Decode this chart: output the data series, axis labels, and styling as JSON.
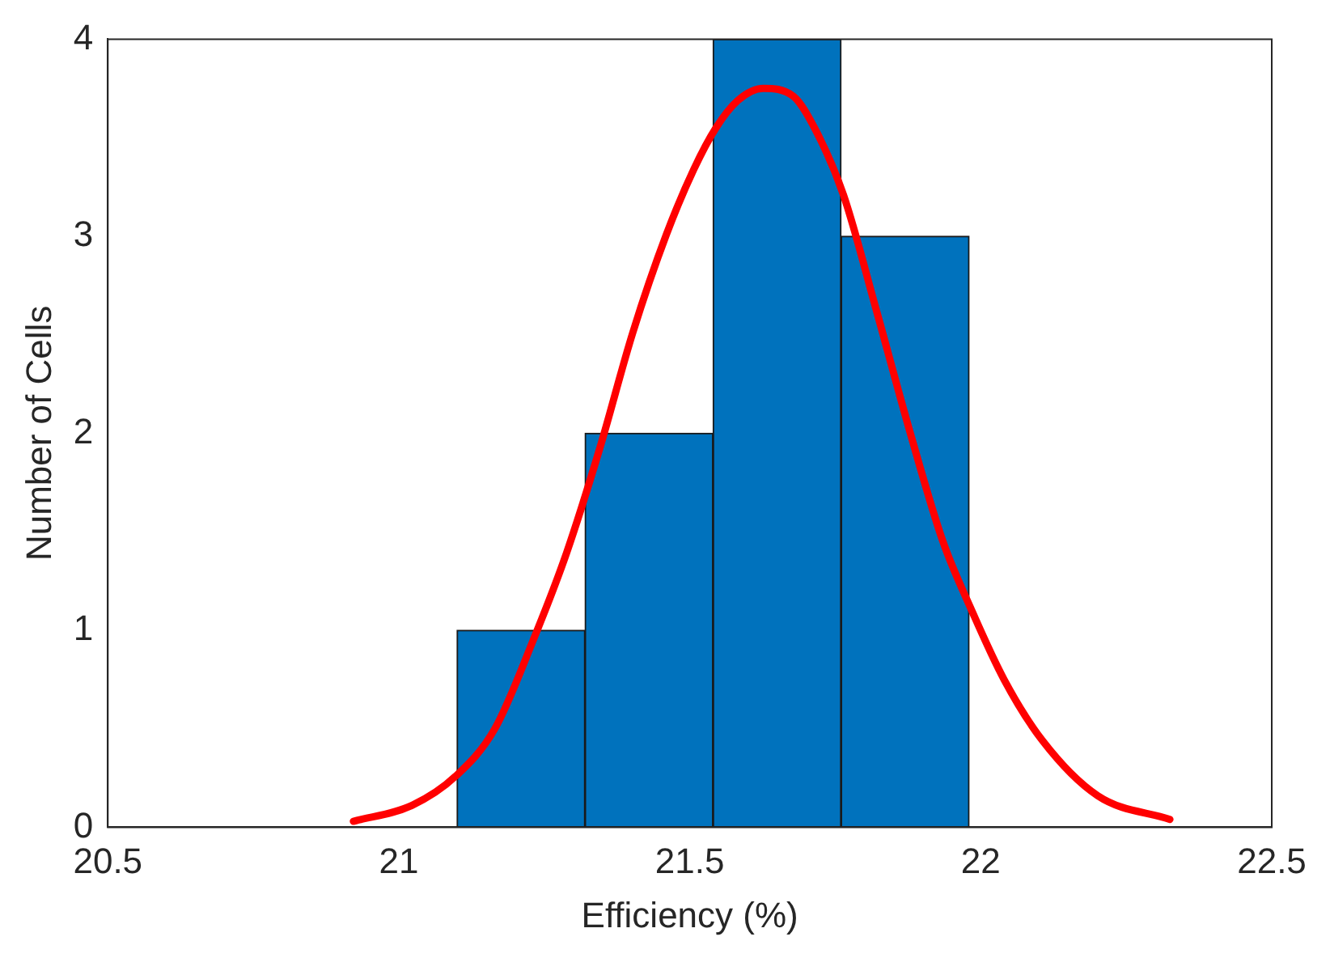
{
  "chart_data": {
    "type": "histogram",
    "xlabel": "Efficiency (%)",
    "ylabel": "Number of Cells",
    "bins": [
      21.1,
      21.32,
      21.54,
      21.76,
      21.98
    ],
    "values": [
      1,
      2,
      4,
      3
    ],
    "color": "#0072bd",
    "series": [
      {
        "type": "line",
        "color": "#ff0000",
        "x": [
          20.922,
          21.022,
          21.098,
          21.165,
          21.231,
          21.288,
          21.345,
          21.402,
          21.46,
          21.507,
          21.545,
          21.583,
          21.626,
          21.678,
          21.716,
          21.764,
          21.821,
          21.878,
          21.935,
          21.983,
          22.04,
          22.106,
          22.201,
          22.325
        ],
        "values": [
          0.03,
          0.11,
          0.26,
          0.5,
          0.95,
          1.39,
          1.92,
          2.51,
          3.01,
          3.34,
          3.55,
          3.69,
          3.75,
          3.71,
          3.54,
          3.21,
          2.62,
          2.01,
          1.45,
          1.11,
          0.75,
          0.44,
          0.16,
          0.04
        ]
      }
    ],
    "marker": "none",
    "grid": false,
    "xlim": [
      20.5,
      22.5
    ],
    "xticks": [
      20.5,
      21,
      21.5,
      22,
      22.5
    ],
    "ylim": [
      0,
      4
    ],
    "yticks": [
      0,
      1,
      2,
      3,
      4
    ]
  }
}
